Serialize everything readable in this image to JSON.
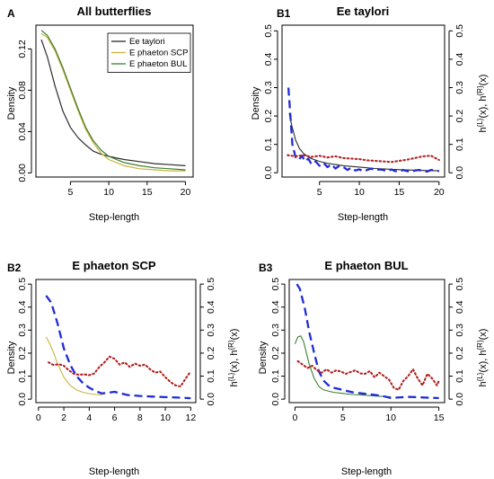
{
  "colors": {
    "ee_taylori": "#2b2b2b",
    "phaeton_scp": "#c9b23a",
    "phaeton_bul": "#3f7f2e",
    "h_left": "#1f2bd6",
    "h_right": "#b22020"
  },
  "chart_data": [
    {
      "id": "A",
      "letter": "A",
      "type": "line",
      "title": "All butterflies",
      "xlabel": "Step-length",
      "ylabel": "Density",
      "xlim": [
        0.5,
        21
      ],
      "ylim": [
        -0.004,
        0.143
      ],
      "xticks": [
        5,
        10,
        15,
        20
      ],
      "yticks": [
        0.0,
        0.04,
        0.08,
        0.12
      ],
      "ytick_labels": [
        "0.00",
        "0.04",
        "0.08",
        "0.12"
      ],
      "legend": {
        "position": "top-right",
        "entries": [
          {
            "label": "Ee taylori",
            "color": "#2b2b2b"
          },
          {
            "label": "E phaeton SCP",
            "color": "#c9b23a"
          },
          {
            "label": "E phaeton BUL",
            "color": "#3f7f2e"
          }
        ]
      },
      "series": [
        {
          "name": "Ee taylori",
          "color": "#2b2b2b",
          "style": "solid",
          "width": 1.2,
          "x": [
            1.2,
            2,
            3,
            4,
            5,
            6,
            7,
            8,
            9,
            10,
            12,
            14,
            16,
            18,
            20
          ],
          "y": [
            0.129,
            0.112,
            0.084,
            0.06,
            0.044,
            0.034,
            0.027,
            0.021,
            0.018,
            0.016,
            0.013,
            0.011,
            0.009,
            0.008,
            0.007
          ]
        },
        {
          "name": "E phaeton SCP",
          "color": "#c9b23a",
          "style": "solid",
          "width": 1.2,
          "x": [
            1.2,
            2,
            3,
            4,
            5,
            6,
            7,
            8,
            9,
            10,
            12,
            14,
            16,
            18,
            20
          ],
          "y": [
            0.135,
            0.131,
            0.118,
            0.1,
            0.08,
            0.06,
            0.042,
            0.029,
            0.019,
            0.013,
            0.007,
            0.004,
            0.003,
            0.002,
            0.002
          ]
        },
        {
          "name": "E phaeton BUL",
          "color": "#3f7f2e",
          "style": "solid",
          "width": 1.2,
          "x": [
            1.2,
            2,
            3,
            4,
            5,
            6,
            7,
            8,
            9,
            10,
            12,
            14,
            16,
            18,
            20
          ],
          "y": [
            0.138,
            0.133,
            0.12,
            0.102,
            0.082,
            0.062,
            0.044,
            0.031,
            0.022,
            0.016,
            0.01,
            0.007,
            0.005,
            0.004,
            0.003
          ]
        }
      ]
    },
    {
      "id": "B1",
      "letter": "B1",
      "type": "line",
      "title": "Ee taylori",
      "xlabel": "Step-length",
      "ylabel": "Density",
      "ylabel_right": "h^{L}(x), h^{R}(x)",
      "xlim": [
        0.3,
        20.7
      ],
      "ylim": [
        -0.015,
        0.52
      ],
      "xticks": [
        5,
        10,
        15,
        20
      ],
      "yticks": [
        0.0,
        0.1,
        0.2,
        0.3,
        0.4,
        0.5
      ],
      "ytick_labels": [
        "0.0",
        "0.1",
        "0.2",
        "0.3",
        "0.4",
        "0.5"
      ],
      "series": [
        {
          "name": "Ee taylori",
          "color": "#2b2b2b",
          "style": "solid",
          "width": 1.1,
          "x": [
            1.2,
            1.5,
            2,
            2.5,
            3,
            3.5,
            4,
            5,
            6,
            8,
            10,
            12,
            15,
            18,
            20
          ],
          "y": [
            0.21,
            0.17,
            0.115,
            0.085,
            0.068,
            0.058,
            0.05,
            0.04,
            0.033,
            0.025,
            0.02,
            0.015,
            0.011,
            0.008,
            0.007
          ]
        },
        {
          "name": "h^{L}(x)",
          "color": "#1f2bd6",
          "style": "dash",
          "width": 2.3,
          "x": [
            1.1,
            1.3,
            1.6,
            2.0,
            2.4,
            2.8,
            3.2,
            3.6,
            4.0,
            4.5,
            5.0,
            5.5,
            6.0,
            6.5,
            7.0,
            7.5,
            8.0,
            8.5,
            9.0,
            9.5,
            10.0,
            10.5,
            11.0,
            11.5,
            12.0,
            12.5,
            13.0,
            13.5,
            14.0,
            14.5,
            15.0,
            15.5,
            16.0,
            16.5,
            17.0,
            17.5,
            18.0,
            18.5,
            19.0,
            19.5,
            20.0
          ],
          "y": [
            0.3,
            0.22,
            0.1,
            0.055,
            0.045,
            0.06,
            0.04,
            0.05,
            0.03,
            0.04,
            0.025,
            0.035,
            0.02,
            0.03,
            0.015,
            0.025,
            0.02,
            0.01,
            0.018,
            0.008,
            0.012,
            0.005,
            0.01,
            0.015,
            0.008,
            0.012,
            0.01,
            0.005,
            0.012,
            0.006,
            0.004,
            0.01,
            0.006,
            0.003,
            0.008,
            0.01,
            0.006,
            0.004,
            0.01,
            0.008,
            0.006
          ]
        },
        {
          "name": "h^{R}(x)",
          "color": "#b22020",
          "style": "dot",
          "width": 2.1,
          "x": [
            1.0,
            2,
            3,
            4,
            5,
            6,
            7,
            8,
            9,
            10,
            11,
            12,
            13,
            14,
            15,
            16,
            17,
            18,
            19,
            20
          ],
          "y": [
            0.062,
            0.058,
            0.062,
            0.056,
            0.06,
            0.054,
            0.058,
            0.052,
            0.05,
            0.048,
            0.044,
            0.042,
            0.04,
            0.038,
            0.042,
            0.046,
            0.052,
            0.058,
            0.06,
            0.045
          ]
        }
      ]
    },
    {
      "id": "B2",
      "letter": "B2",
      "type": "line",
      "title": "E phaeton SCP",
      "xlabel": "Step-length",
      "ylabel": "Density",
      "ylabel_right": "h^{L}(x), h^{R}(x)",
      "xlim": [
        -0.2,
        12.4
      ],
      "ylim": [
        -0.015,
        0.52
      ],
      "xticks": [
        0,
        2,
        4,
        6,
        8,
        10,
        12
      ],
      "yticks": [
        0.0,
        0.1,
        0.2,
        0.3,
        0.4,
        0.5
      ],
      "ytick_labels": [
        "0.0",
        "0.1",
        "0.2",
        "0.3",
        "0.4",
        "0.5"
      ],
      "series": [
        {
          "name": "E phaeton SCP",
          "color": "#c9b23a",
          "style": "solid",
          "width": 1.1,
          "x": [
            0.6,
            0.9,
            1.2,
            1.5,
            2.0,
            2.5,
            3.0,
            3.5,
            4.0,
            4.5,
            5.0
          ],
          "y": [
            0.27,
            0.24,
            0.2,
            0.155,
            0.095,
            0.06,
            0.04,
            0.03,
            0.024,
            0.02,
            0.018
          ]
        },
        {
          "name": "h^{L}(x)",
          "color": "#1f2bd6",
          "style": "dash",
          "width": 2.3,
          "x": [
            0.6,
            1.0,
            1.5,
            2.0,
            2.5,
            3.0,
            3.5,
            4.0,
            4.5,
            5.0,
            5.5,
            6.0,
            6.5,
            7.0,
            8.0,
            9.0,
            10.0,
            11.0,
            12.0
          ],
          "y": [
            0.45,
            0.42,
            0.33,
            0.22,
            0.15,
            0.1,
            0.07,
            0.05,
            0.035,
            0.025,
            0.028,
            0.032,
            0.025,
            0.018,
            0.014,
            0.011,
            0.009,
            0.007,
            0.004
          ]
        },
        {
          "name": "h^{R}(x)",
          "color": "#b22020",
          "style": "dot",
          "width": 2.1,
          "x": [
            0.8,
            1.2,
            1.6,
            2.0,
            2.4,
            2.8,
            3.2,
            3.6,
            4.0,
            4.4,
            4.8,
            5.2,
            5.6,
            6.0,
            6.4,
            6.8,
            7.2,
            7.6,
            8.0,
            8.4,
            8.8,
            9.2,
            9.6,
            10.0,
            10.4,
            10.8,
            11.2,
            11.6,
            12.0
          ],
          "y": [
            0.16,
            0.148,
            0.152,
            0.145,
            0.125,
            0.11,
            0.106,
            0.108,
            0.104,
            0.112,
            0.14,
            0.16,
            0.185,
            0.175,
            0.15,
            0.16,
            0.14,
            0.155,
            0.145,
            0.15,
            0.13,
            0.115,
            0.12,
            0.095,
            0.075,
            0.06,
            0.055,
            0.09,
            0.12
          ]
        }
      ]
    },
    {
      "id": "B3",
      "letter": "B3",
      "type": "line",
      "title": "E phaeton BUL",
      "xlabel": "Step-length",
      "ylabel": "Density",
      "ylabel_right": "h^{L}(x), h^{R}(x)",
      "xlim": [
        -0.6,
        15.6
      ],
      "ylim": [
        -0.015,
        0.52
      ],
      "xticks": [
        0,
        5,
        10,
        15
      ],
      "yticks": [
        0.0,
        0.1,
        0.2,
        0.3,
        0.4,
        0.5
      ],
      "ytick_labels": [
        "0.0",
        "0.1",
        "0.2",
        "0.3",
        "0.4",
        "0.5"
      ],
      "series": [
        {
          "name": "E phaeton BUL",
          "color": "#3f7f2e",
          "style": "solid",
          "width": 1.1,
          "x": [
            0.0,
            0.3,
            0.6,
            0.9,
            1.2,
            1.5,
            2.0,
            2.5,
            3.0,
            4.0,
            5.0,
            6.0,
            7.0,
            8.0,
            9.0,
            10.0
          ],
          "y": [
            0.24,
            0.27,
            0.275,
            0.25,
            0.2,
            0.15,
            0.09,
            0.055,
            0.04,
            0.03,
            0.025,
            0.02,
            0.018,
            0.015,
            0.012,
            0.01
          ]
        },
        {
          "name": "h^{L}(x)",
          "color": "#1f2bd6",
          "style": "dash",
          "width": 2.3,
          "x": [
            0.2,
            0.5,
            1.0,
            1.5,
            2.0,
            2.5,
            3.0,
            3.5,
            4.0,
            5.0,
            6.0,
            7.0,
            8.0,
            9.0,
            10.0,
            11.0,
            12.0,
            13.0,
            14.0,
            15.0
          ],
          "y": [
            0.5,
            0.48,
            0.4,
            0.29,
            0.2,
            0.12,
            0.08,
            0.06,
            0.05,
            0.04,
            0.03,
            0.025,
            0.02,
            0.015,
            0.005,
            0.008,
            0.01,
            0.008,
            0.006,
            0.005
          ]
        },
        {
          "name": "h^{R}(x)",
          "color": "#b22020",
          "style": "dot",
          "width": 2.1,
          "x": [
            0.3,
            0.8,
            1.3,
            1.8,
            2.3,
            2.8,
            3.3,
            3.8,
            4.3,
            4.8,
            5.3,
            5.8,
            6.3,
            6.8,
            7.3,
            7.8,
            8.3,
            8.8,
            9.3,
            9.8,
            10.3,
            10.8,
            11.3,
            11.8,
            12.3,
            12.8,
            13.3,
            13.8,
            14.3,
            14.8,
            15.0
          ],
          "y": [
            0.165,
            0.15,
            0.135,
            0.145,
            0.125,
            0.115,
            0.13,
            0.115,
            0.125,
            0.12,
            0.11,
            0.118,
            0.125,
            0.112,
            0.11,
            0.122,
            0.095,
            0.115,
            0.1,
            0.085,
            0.05,
            0.04,
            0.08,
            0.1,
            0.13,
            0.09,
            0.06,
            0.11,
            0.09,
            0.06,
            0.08
          ]
        }
      ]
    }
  ]
}
